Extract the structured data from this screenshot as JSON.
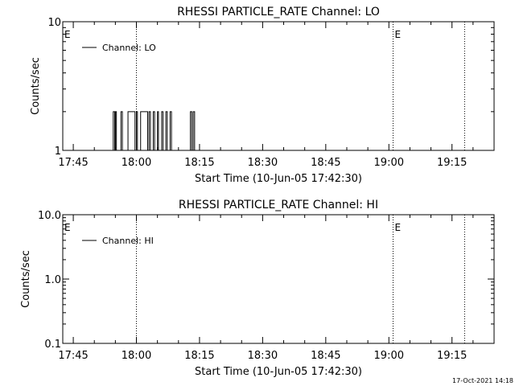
{
  "chart_data": [
    {
      "type": "line",
      "title": "RHESSI PARTICLE_RATE Channel: LO",
      "xlabel": "Start Time (10-Jun-05 17:42:30)",
      "ylabel": "Counts/sec",
      "y_scale": "log",
      "ylim": [
        1,
        10
      ],
      "y_ticks": [
        1,
        10
      ],
      "y_tick_labels": [
        "1",
        "10"
      ],
      "xlim": [
        "17:42:30",
        "19:25:00"
      ],
      "x_ticks": [
        "17:45",
        "18:00",
        "18:15",
        "18:30",
        "18:45",
        "19:00",
        "19:15"
      ],
      "event_lines": [
        "18:00",
        "19:01",
        "19:18"
      ],
      "event_markers": [
        {
          "time": "17:42:30",
          "label": "E"
        },
        {
          "time": "19:01",
          "label": "E"
        }
      ],
      "legend": {
        "position": "top-left",
        "entries": [
          "Channel: LO"
        ]
      },
      "grid": false,
      "series": [
        {
          "name": "Channel: LO",
          "line_style": "step",
          "points": [
            [
              "17:52:00",
              1
            ],
            [
              "17:54:30",
              1
            ],
            [
              "17:54:30",
              2
            ],
            [
              "17:54:50",
              2
            ],
            [
              "17:54:50",
              1
            ],
            [
              "17:55:00",
              1
            ],
            [
              "17:55:00",
              2
            ],
            [
              "17:55:15",
              2
            ],
            [
              "17:55:15",
              1
            ],
            [
              "17:56:20",
              1
            ],
            [
              "17:56:20",
              2
            ],
            [
              "17:56:40",
              2
            ],
            [
              "17:56:40",
              1
            ],
            [
              "17:58:00",
              1
            ],
            [
              "17:58:00",
              2
            ],
            [
              "17:59:40",
              2
            ],
            [
              "17:59:40",
              1
            ],
            [
              "18:00:00",
              1
            ],
            [
              "18:00:00",
              2
            ],
            [
              "18:00:15",
              2
            ],
            [
              "18:00:15",
              1
            ],
            [
              "18:01:00",
              1
            ],
            [
              "18:01:00",
              2
            ],
            [
              "18:02:40",
              2
            ],
            [
              "18:02:40",
              1
            ],
            [
              "18:03:00",
              1
            ],
            [
              "18:03:00",
              2
            ],
            [
              "18:03:20",
              2
            ],
            [
              "18:03:20",
              1
            ],
            [
              "18:04:00",
              1
            ],
            [
              "18:04:00",
              2
            ],
            [
              "18:04:20",
              2
            ],
            [
              "18:04:20",
              1
            ],
            [
              "18:05:00",
              1
            ],
            [
              "18:05:00",
              2
            ],
            [
              "18:05:15",
              2
            ],
            [
              "18:05:15",
              1
            ],
            [
              "18:06:00",
              1
            ],
            [
              "18:06:00",
              2
            ],
            [
              "18:06:20",
              2
            ],
            [
              "18:06:20",
              1
            ],
            [
              "18:07:00",
              1
            ],
            [
              "18:07:00",
              2
            ],
            [
              "18:07:20",
              2
            ],
            [
              "18:07:20",
              1
            ],
            [
              "18:08:00",
              1
            ],
            [
              "18:08:00",
              2
            ],
            [
              "18:08:20",
              2
            ],
            [
              "18:08:20",
              1
            ],
            [
              "18:12:50",
              1
            ],
            [
              "18:12:50",
              2
            ],
            [
              "18:13:10",
              2
            ],
            [
              "18:13:10",
              1
            ],
            [
              "18:13:30",
              1
            ],
            [
              "18:13:30",
              2
            ],
            [
              "18:13:50",
              2
            ],
            [
              "18:13:50",
              1
            ],
            [
              "18:14:20",
              1
            ]
          ]
        }
      ]
    },
    {
      "type": "line",
      "title": "RHESSI PARTICLE_RATE Channel: HI",
      "xlabel": "Start Time (10-Jun-05 17:42:30)",
      "ylabel": "Counts/sec",
      "y_scale": "log",
      "ylim": [
        0.1,
        10
      ],
      "y_ticks": [
        0.1,
        1,
        10
      ],
      "y_tick_labels": [
        "0.1",
        "1.0",
        "10.0"
      ],
      "xlim": [
        "17:42:30",
        "19:25:00"
      ],
      "x_ticks": [
        "17:45",
        "18:00",
        "18:15",
        "18:30",
        "18:45",
        "19:00",
        "19:15"
      ],
      "event_lines": [
        "18:00",
        "19:01",
        "19:18"
      ],
      "event_markers": [
        {
          "time": "17:42:30",
          "label": "E"
        },
        {
          "time": "19:01",
          "label": "E"
        }
      ],
      "legend": {
        "position": "top-left",
        "entries": [
          "Channel: HI"
        ]
      },
      "grid": false,
      "series": [
        {
          "name": "Channel: HI",
          "line_style": "step",
          "points": []
        }
      ]
    }
  ],
  "footer": {
    "timestamp": "17-Oct-2021 14:18"
  }
}
